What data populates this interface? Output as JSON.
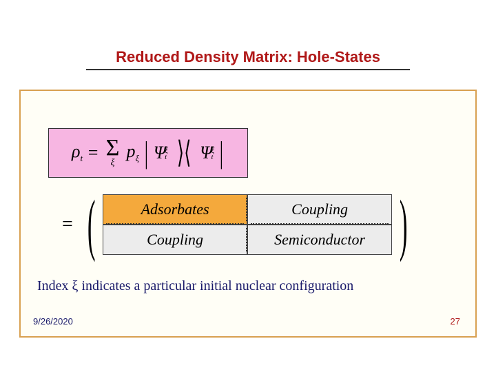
{
  "title": {
    "text": "Reduced Density Matrix: Hole-States",
    "color": "#b01818",
    "underline_color": "#333333",
    "fontsize": 22
  },
  "content_box": {
    "background": "#fffef6",
    "border_color": "#d8a050"
  },
  "equation_box": {
    "background": "#f7b6e2",
    "border_color": "#333333",
    "lhs_symbol": "ρ",
    "lhs_sub": "t",
    "sum_symbol": "Σ",
    "sum_index": "ξ",
    "coeff": "p",
    "coeff_sub": "ξ",
    "ket_symbol": "Ψ",
    "ket_sub": "t",
    "ket_sup": "ξ"
  },
  "matrix": {
    "equals": "=",
    "cells": {
      "r0c0": "Adsorbates",
      "r0c1": "Coupling",
      "r1c0": "Coupling",
      "r1c1": "Semiconductor"
    },
    "highlight_background": "#f4a93c",
    "cell_background": "#ececec",
    "cell_fontsize": 22
  },
  "caption": {
    "prefix": "Index ",
    "symbol": "ξ",
    "suffix": " indicates a particular initial nuclear configuration",
    "color": "#1a1a6a",
    "fontsize": 20
  },
  "footer": {
    "date": "9/26/2020",
    "page": "27",
    "date_color": "#1a1a6a",
    "page_color": "#b01818"
  }
}
